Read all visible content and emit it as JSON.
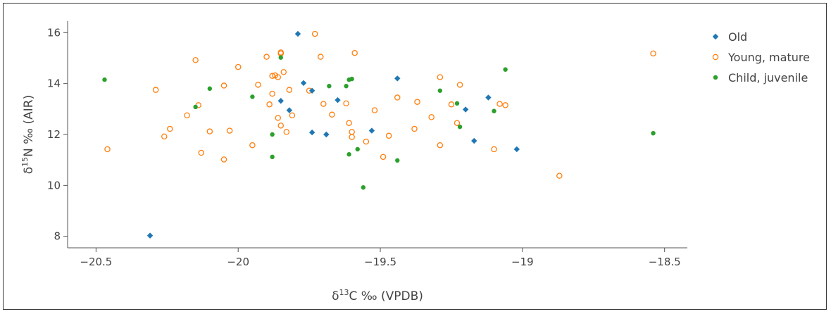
{
  "chart_data": {
    "type": "scatter",
    "title": "",
    "xlabel": {
      "pre": "δ",
      "sup": "13",
      "post": "C ‰ (VPDB)"
    },
    "ylabel": {
      "pre": "δ",
      "sup": "15",
      "post": "N ‰ (AIR)"
    },
    "xlim": [
      -20.6,
      -18.42
    ],
    "ylim": [
      7.55,
      16.45
    ],
    "xticks": [
      -20.5,
      -20,
      -19.5,
      -19,
      -18.5
    ],
    "xtick_labels": [
      "−20.5",
      "−20",
      "−19.5",
      "−19",
      "−18.5"
    ],
    "yticks": [
      8,
      10,
      12,
      14,
      16
    ],
    "ytick_labels": [
      "8",
      "10",
      "12",
      "14",
      "16"
    ],
    "grid": false,
    "legend_position": "right",
    "series": [
      {
        "name": "Old",
        "color": "#1f77b4",
        "marker": "filled-diamond",
        "points": [
          [
            -19.79,
            15.95
          ],
          [
            -19.77,
            14.02
          ],
          [
            -19.74,
            13.72
          ],
          [
            -19.85,
            13.32
          ],
          [
            -19.82,
            12.95
          ],
          [
            -19.74,
            12.08
          ],
          [
            -19.69,
            12.0
          ],
          [
            -19.65,
            13.35
          ],
          [
            -19.53,
            12.15
          ],
          [
            -19.44,
            14.2
          ],
          [
            -19.2,
            12.98
          ],
          [
            -19.17,
            11.75
          ],
          [
            -19.12,
            13.45
          ],
          [
            -19.02,
            11.42
          ],
          [
            -20.31,
            8.03
          ]
        ]
      },
      {
        "name": "Young, mature",
        "color": "#ff7f0e",
        "marker": "open-circle",
        "points": [
          [
            -20.46,
            11.42
          ],
          [
            -20.29,
            13.75
          ],
          [
            -20.26,
            11.92
          ],
          [
            -20.24,
            12.22
          ],
          [
            -20.18,
            12.75
          ],
          [
            -20.15,
            14.92
          ],
          [
            -20.14,
            13.15
          ],
          [
            -20.13,
            11.28
          ],
          [
            -20.1,
            12.12
          ],
          [
            -20.05,
            13.92
          ],
          [
            -20.05,
            11.02
          ],
          [
            -20.03,
            12.15
          ],
          [
            -20.0,
            14.65
          ],
          [
            -19.95,
            11.58
          ],
          [
            -19.93,
            13.95
          ],
          [
            -19.9,
            15.05
          ],
          [
            -19.89,
            13.18
          ],
          [
            -19.88,
            13.6
          ],
          [
            -19.88,
            14.3
          ],
          [
            -19.87,
            14.32
          ],
          [
            -19.86,
            14.25
          ],
          [
            -19.86,
            12.65
          ],
          [
            -19.85,
            15.18
          ],
          [
            -19.85,
            15.22
          ],
          [
            -19.85,
            12.35
          ],
          [
            -19.84,
            14.45
          ],
          [
            -19.83,
            12.1
          ],
          [
            -19.82,
            13.75
          ],
          [
            -19.81,
            12.75
          ],
          [
            -19.75,
            13.72
          ],
          [
            -19.73,
            15.95
          ],
          [
            -19.71,
            15.05
          ],
          [
            -19.7,
            13.2
          ],
          [
            -19.67,
            12.78
          ],
          [
            -19.62,
            13.22
          ],
          [
            -19.61,
            12.45
          ],
          [
            -19.6,
            12.1
          ],
          [
            -19.6,
            11.9
          ],
          [
            -19.59,
            15.2
          ],
          [
            -19.55,
            11.72
          ],
          [
            -19.52,
            12.95
          ],
          [
            -19.49,
            11.12
          ],
          [
            -19.47,
            11.95
          ],
          [
            -19.44,
            13.45
          ],
          [
            -19.38,
            12.22
          ],
          [
            -19.37,
            13.28
          ],
          [
            -19.32,
            12.68
          ],
          [
            -19.29,
            14.25
          ],
          [
            -19.29,
            11.58
          ],
          [
            -19.25,
            13.18
          ],
          [
            -19.23,
            12.45
          ],
          [
            -19.22,
            13.95
          ],
          [
            -19.1,
            11.42
          ],
          [
            -19.08,
            13.2
          ],
          [
            -19.06,
            13.15
          ],
          [
            -18.87,
            10.38
          ],
          [
            -18.54,
            15.18
          ]
        ]
      },
      {
        "name": "Child, juvenile",
        "color": "#2ca02c",
        "marker": "filled-circle",
        "points": [
          [
            -20.47,
            14.15
          ],
          [
            -20.15,
            13.08
          ],
          [
            -20.1,
            13.8
          ],
          [
            -19.95,
            13.48
          ],
          [
            -19.88,
            12.0
          ],
          [
            -19.88,
            11.12
          ],
          [
            -19.85,
            15.02
          ],
          [
            -19.68,
            13.9
          ],
          [
            -19.62,
            13.9
          ],
          [
            -19.61,
            14.15
          ],
          [
            -19.6,
            14.18
          ],
          [
            -19.61,
            11.22
          ],
          [
            -19.58,
            11.42
          ],
          [
            -19.56,
            9.92
          ],
          [
            -19.44,
            10.98
          ],
          [
            -19.29,
            13.72
          ],
          [
            -19.23,
            13.22
          ],
          [
            -19.22,
            12.3
          ],
          [
            -19.06,
            14.55
          ],
          [
            -19.1,
            12.92
          ],
          [
            -18.54,
            12.05
          ]
        ]
      }
    ]
  }
}
